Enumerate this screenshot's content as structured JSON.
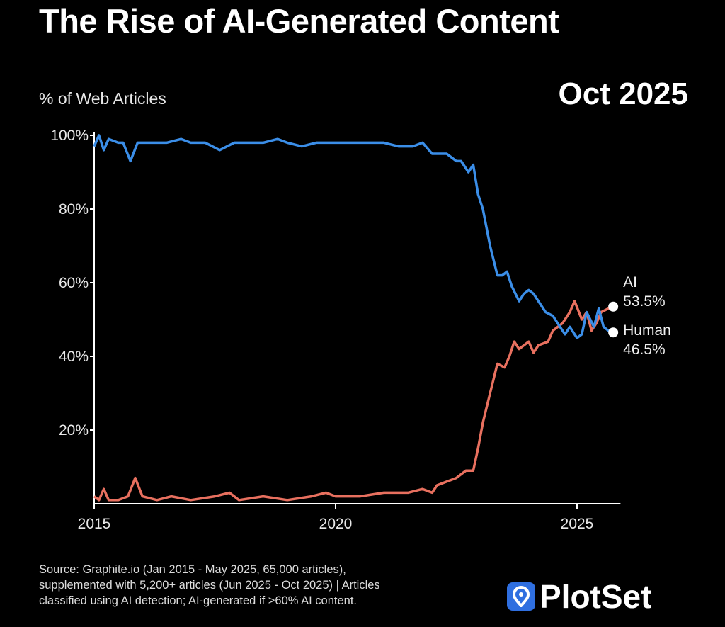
{
  "header": {
    "title": "The Rise of AI-Generated Content",
    "date": "Oct 2025"
  },
  "footer": {
    "source_lines": [
      "Source: Graphite.io (Jan 2015 - May 2025, 65,000 articles),",
      "supplemented with 5,200+ articles (Jun 2025 - Oct 2025) | Articles",
      "classified using AI detection; AI-generated if >60% AI content."
    ],
    "brand": "PlotSet"
  },
  "chart_data": {
    "type": "line",
    "title": "The Rise of AI-Generated Content",
    "ylabel": "% of Web Articles",
    "xlabel": "",
    "xlim": [
      2015,
      2025.9
    ],
    "ylim": [
      0,
      100
    ],
    "xticks": [
      {
        "v": 2015,
        "label": "2015"
      },
      {
        "v": 2020,
        "label": "2020"
      },
      {
        "v": 2025,
        "label": "2025"
      }
    ],
    "yticks": [
      {
        "v": 20,
        "label": "20%"
      },
      {
        "v": 40,
        "label": "40%"
      },
      {
        "v": 60,
        "label": "60%"
      },
      {
        "v": 80,
        "label": "80%"
      },
      {
        "v": 100,
        "label": "100%"
      }
    ],
    "grid": false,
    "series": [
      {
        "name": "Human",
        "color": "#3b8ee8",
        "end_label": "Human",
        "end_value": "46.5%",
        "x": [
          2015,
          2015.1,
          2015.2,
          2015.3,
          2015.5,
          2015.6,
          2015.75,
          2015.9,
          2016.2,
          2016.5,
          2016.8,
          2017,
          2017.3,
          2017.6,
          2017.9,
          2018.2,
          2018.5,
          2018.8,
          2019,
          2019.3,
          2019.6,
          2020,
          2020.5,
          2021,
          2021.3,
          2021.6,
          2021.8,
          2022,
          2022.3,
          2022.5,
          2022.6,
          2022.75,
          2022.85,
          2022.95,
          2023.05,
          2023.2,
          2023.35,
          2023.45,
          2023.55,
          2023.65,
          2023.8,
          2023.9,
          2024.0,
          2024.1,
          2024.2,
          2024.35,
          2024.5,
          2024.65,
          2024.75,
          2024.85,
          2025.0,
          2025.1,
          2025.2,
          2025.35,
          2025.45,
          2025.55,
          2025.65,
          2025.75
        ],
        "y": [
          97,
          100,
          96,
          99,
          98,
          98,
          93,
          98,
          98,
          98,
          99,
          98,
          98,
          96,
          98,
          98,
          98,
          99,
          98,
          97,
          98,
          98,
          98,
          98,
          97,
          97,
          98,
          95,
          95,
          93,
          93,
          90,
          92,
          84,
          80,
          70,
          62,
          62,
          63,
          59,
          55,
          57,
          58,
          57,
          55,
          52,
          51,
          48,
          46,
          48,
          45,
          46,
          52,
          48,
          53,
          48,
          47,
          46.5
        ]
      },
      {
        "name": "AI",
        "color": "#e8705f",
        "end_label": "AI",
        "end_value": "53.5%",
        "x": [
          2015,
          2015.1,
          2015.2,
          2015.3,
          2015.5,
          2015.7,
          2015.85,
          2016.0,
          2016.3,
          2016.6,
          2017,
          2017.5,
          2017.8,
          2018.0,
          2018.5,
          2019,
          2019.5,
          2019.8,
          2020,
          2020.5,
          2021,
          2021.5,
          2021.8,
          2022,
          2022.1,
          2022.3,
          2022.5,
          2022.7,
          2022.85,
          2022.95,
          2023.05,
          2023.2,
          2023.35,
          2023.5,
          2023.6,
          2023.7,
          2023.8,
          2023.9,
          2024.0,
          2024.1,
          2024.2,
          2024.4,
          2024.5,
          2024.7,
          2024.85,
          2024.95,
          2025.1,
          2025.2,
          2025.3,
          2025.4,
          2025.5,
          2025.65,
          2025.75
        ],
        "y": [
          2,
          1,
          4,
          1,
          1,
          2,
          7,
          2,
          1,
          2,
          1,
          2,
          3,
          1,
          2,
          1,
          2,
          3,
          2,
          2,
          3,
          3,
          4,
          3,
          5,
          6,
          7,
          9,
          9,
          15,
          22,
          30,
          38,
          37,
          40,
          44,
          42,
          43,
          44,
          41,
          43,
          44,
          47,
          49,
          52,
          55,
          50,
          52,
          47,
          49,
          52,
          53,
          53.5
        ]
      }
    ]
  }
}
